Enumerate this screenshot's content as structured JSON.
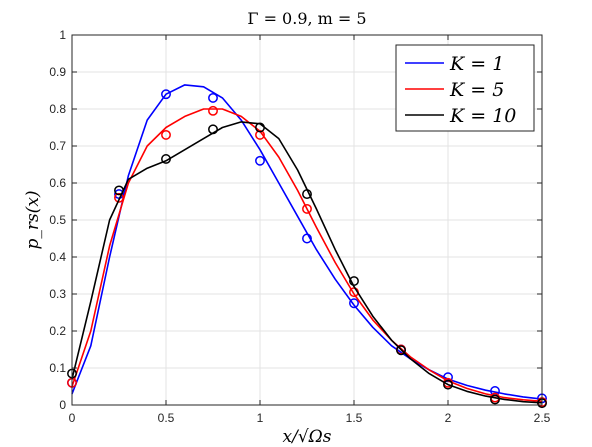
{
  "chart_data": {
    "type": "line",
    "title": "Γ = 0.9, m = 5",
    "xlabel": "x/√Ωs",
    "ylabel": "p_rs(x)",
    "xlim": [
      0,
      2.5
    ],
    "ylim": [
      0,
      1
    ],
    "xticks": [
      0,
      0.5,
      1,
      1.5,
      2,
      2.5
    ],
    "xtick_labels": [
      "0",
      "0.5",
      "1",
      "1.5",
      "2",
      "2.5"
    ],
    "yticks": [
      0,
      0.1,
      0.2,
      0.3,
      0.4,
      0.5,
      0.6,
      0.7,
      0.8,
      0.9,
      1
    ],
    "ytick_labels": [
      "0",
      "0.1",
      "0.2",
      "0.3",
      "0.4",
      "0.5",
      "0.6",
      "0.7",
      "0.8",
      "0.9",
      "1"
    ],
    "grid": true,
    "legend_position": "top-right",
    "series": [
      {
        "name": "K = 1",
        "color": "#0000ff",
        "curve": [
          [
            0,
            0.03
          ],
          [
            0.1,
            0.16
          ],
          [
            0.2,
            0.4
          ],
          [
            0.3,
            0.62
          ],
          [
            0.4,
            0.77
          ],
          [
            0.5,
            0.84
          ],
          [
            0.6,
            0.865
          ],
          [
            0.7,
            0.86
          ],
          [
            0.8,
            0.83
          ],
          [
            0.9,
            0.77
          ],
          [
            1.0,
            0.69
          ],
          [
            1.1,
            0.6
          ],
          [
            1.2,
            0.51
          ],
          [
            1.3,
            0.42
          ],
          [
            1.4,
            0.34
          ],
          [
            1.5,
            0.27
          ],
          [
            1.6,
            0.21
          ],
          [
            1.7,
            0.16
          ],
          [
            1.8,
            0.125
          ],
          [
            1.9,
            0.095
          ],
          [
            2.0,
            0.07
          ],
          [
            2.1,
            0.053
          ],
          [
            2.2,
            0.04
          ],
          [
            2.3,
            0.03
          ],
          [
            2.4,
            0.022
          ],
          [
            2.5,
            0.016
          ]
        ],
        "points": [
          [
            0,
            0.06
          ],
          [
            0.25,
            0.57
          ],
          [
            0.5,
            0.84
          ],
          [
            0.75,
            0.83
          ],
          [
            1.0,
            0.66
          ],
          [
            1.25,
            0.45
          ],
          [
            1.5,
            0.275
          ],
          [
            1.75,
            0.15
          ],
          [
            2.0,
            0.075
          ],
          [
            2.25,
            0.038
          ],
          [
            2.5,
            0.018
          ]
        ]
      },
      {
        "name": "K = 5",
        "color": "#ff0000",
        "curve": [
          [
            0,
            0.05
          ],
          [
            0.1,
            0.2
          ],
          [
            0.2,
            0.43
          ],
          [
            0.3,
            0.6
          ],
          [
            0.4,
            0.7
          ],
          [
            0.5,
            0.75
          ],
          [
            0.6,
            0.78
          ],
          [
            0.7,
            0.8
          ],
          [
            0.8,
            0.8
          ],
          [
            0.9,
            0.78
          ],
          [
            1.0,
            0.74
          ],
          [
            1.1,
            0.67
          ],
          [
            1.2,
            0.58
          ],
          [
            1.3,
            0.48
          ],
          [
            1.4,
            0.385
          ],
          [
            1.5,
            0.3
          ],
          [
            1.6,
            0.23
          ],
          [
            1.7,
            0.175
          ],
          [
            1.8,
            0.13
          ],
          [
            1.9,
            0.095
          ],
          [
            2.0,
            0.065
          ],
          [
            2.1,
            0.045
          ],
          [
            2.2,
            0.03
          ],
          [
            2.3,
            0.02
          ],
          [
            2.4,
            0.014
          ],
          [
            2.5,
            0.01
          ]
        ],
        "points": [
          [
            0,
            0.06
          ],
          [
            0.25,
            0.56
          ],
          [
            0.5,
            0.73
          ],
          [
            0.75,
            0.795
          ],
          [
            1.0,
            0.73
          ],
          [
            1.25,
            0.53
          ],
          [
            1.5,
            0.305
          ],
          [
            1.75,
            0.15
          ],
          [
            2.0,
            0.06
          ],
          [
            2.25,
            0.02
          ],
          [
            2.5,
            0.008
          ]
        ]
      },
      {
        "name": "K = 10",
        "color": "#000000",
        "curve": [
          [
            0,
            0.07
          ],
          [
            0.1,
            0.28
          ],
          [
            0.2,
            0.5
          ],
          [
            0.3,
            0.61
          ],
          [
            0.4,
            0.64
          ],
          [
            0.5,
            0.66
          ],
          [
            0.6,
            0.69
          ],
          [
            0.7,
            0.72
          ],
          [
            0.8,
            0.75
          ],
          [
            0.9,
            0.765
          ],
          [
            1.0,
            0.76
          ],
          [
            1.1,
            0.72
          ],
          [
            1.2,
            0.635
          ],
          [
            1.3,
            0.53
          ],
          [
            1.4,
            0.42
          ],
          [
            1.5,
            0.32
          ],
          [
            1.6,
            0.24
          ],
          [
            1.7,
            0.175
          ],
          [
            1.8,
            0.125
          ],
          [
            1.9,
            0.085
          ],
          [
            2.0,
            0.055
          ],
          [
            2.1,
            0.037
          ],
          [
            2.2,
            0.024
          ],
          [
            2.3,
            0.015
          ],
          [
            2.4,
            0.009
          ],
          [
            2.5,
            0.006
          ]
        ],
        "points": [
          [
            0,
            0.085
          ],
          [
            0.25,
            0.58
          ],
          [
            0.5,
            0.665
          ],
          [
            0.75,
            0.745
          ],
          [
            1.0,
            0.75
          ],
          [
            1.25,
            0.57
          ],
          [
            1.5,
            0.335
          ],
          [
            1.75,
            0.148
          ],
          [
            2.0,
            0.055
          ],
          [
            2.25,
            0.015
          ],
          [
            2.5,
            0.005
          ]
        ]
      }
    ]
  }
}
